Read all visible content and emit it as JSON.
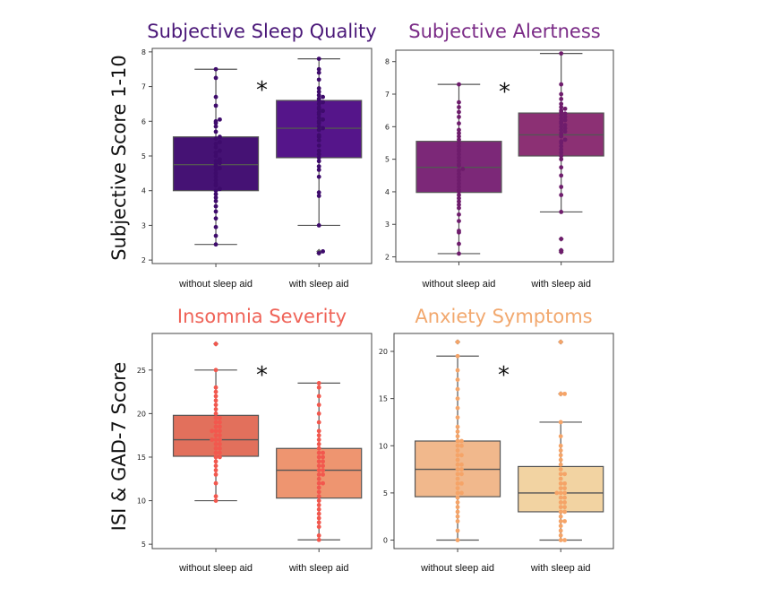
{
  "ylabels": {
    "top": "Subjective Score 1-10",
    "bottom": "ISI & GAD-7 Score"
  },
  "chart_data": [
    {
      "type": "box",
      "title": "Subjective Sleep Quality",
      "title_color": "#4a1778",
      "categories": [
        "without sleep aid",
        "with sleep aid"
      ],
      "ylim": [
        1.9,
        8.1
      ],
      "yticks": [
        2,
        3,
        4,
        5,
        6,
        7,
        8
      ],
      "significance": "*",
      "box_colors": [
        "#451274",
        "#55158a"
      ],
      "dot_color": "#3e0b6c",
      "boxes": [
        {
          "whislo": 2.45,
          "q1": 4.0,
          "med": 4.75,
          "q3": 5.55,
          "whishi": 7.5,
          "fliers": []
        },
        {
          "whislo": 3.0,
          "q1": 4.95,
          "med": 5.8,
          "q3": 6.6,
          "whishi": 7.8,
          "fliers": [
            2.2,
            2.25
          ]
        }
      ],
      "points": [
        [
          2.45,
          2.7,
          2.95,
          3.2,
          3.4,
          3.55,
          3.7,
          3.8,
          3.9,
          4.0,
          4.05,
          4.15,
          4.2,
          4.3,
          4.4,
          4.5,
          4.6,
          4.65,
          4.7,
          4.75,
          4.8,
          4.85,
          4.9,
          5.0,
          5.1,
          5.15,
          5.25,
          5.35,
          5.4,
          5.5,
          5.55,
          5.7,
          5.85,
          5.95,
          6.0,
          6.05,
          6.45,
          6.7,
          7.25,
          7.5
        ],
        [
          2.2,
          2.25,
          3.0,
          3.85,
          3.95,
          4.4,
          4.6,
          4.7,
          4.85,
          4.95,
          5.05,
          5.15,
          5.3,
          5.45,
          5.55,
          5.6,
          5.75,
          5.8,
          5.85,
          5.95,
          6.0,
          6.05,
          6.1,
          6.2,
          6.25,
          6.3,
          6.35,
          6.4,
          6.5,
          6.55,
          6.6,
          6.65,
          6.7,
          6.75,
          6.85,
          6.95,
          7.2,
          7.4,
          7.5,
          7.8
        ]
      ]
    },
    {
      "type": "box",
      "title": "Subjective Alertness",
      "title_color": "#7a2a86",
      "categories": [
        "without sleep aid",
        "with sleep aid"
      ],
      "ylim": [
        1.85,
        8.35
      ],
      "yticks": [
        2,
        3,
        4,
        5,
        6,
        7,
        8
      ],
      "significance": "*",
      "box_colors": [
        "#7c2878",
        "#8c3074"
      ],
      "dot_color": "#6e1c6c",
      "boxes": [
        {
          "whislo": 2.1,
          "q1": 3.98,
          "med": 4.75,
          "q3": 5.55,
          "whishi": 7.3,
          "fliers": []
        },
        {
          "whislo": 3.38,
          "q1": 5.1,
          "med": 5.75,
          "q3": 6.42,
          "whishi": 8.25,
          "fliers": [
            2.15,
            2.2,
            2.55
          ]
        }
      ],
      "points": [
        [
          2.1,
          2.4,
          2.75,
          2.8,
          3.1,
          3.3,
          3.5,
          3.6,
          3.7,
          3.8,
          3.9,
          4.0,
          4.05,
          4.15,
          4.25,
          4.35,
          4.45,
          4.55,
          4.65,
          4.7,
          4.8,
          4.85,
          4.95,
          5.05,
          5.15,
          5.25,
          5.3,
          5.4,
          5.5,
          5.6,
          5.7,
          5.8,
          5.9,
          6.1,
          6.3,
          6.45,
          6.6,
          6.75,
          7.3
        ],
        [
          2.15,
          2.2,
          2.55,
          3.38,
          3.9,
          4.15,
          4.5,
          4.75,
          5.0,
          5.1,
          5.2,
          5.3,
          5.4,
          5.5,
          5.55,
          5.6,
          5.7,
          5.75,
          5.8,
          5.85,
          5.9,
          5.95,
          6.0,
          6.05,
          6.1,
          6.15,
          6.2,
          6.25,
          6.3,
          6.35,
          6.4,
          6.45,
          6.5,
          6.55,
          6.6,
          6.7,
          6.85,
          7.0,
          7.3,
          8.25
        ]
      ]
    },
    {
      "type": "box",
      "title": "Insomnia Severity",
      "title_color": "#ef6358",
      "categories": [
        "without sleep aid",
        "with sleep aid"
      ],
      "ylim": [
        4.5,
        29.2
      ],
      "yticks": [
        5,
        10,
        15,
        20,
        25
      ],
      "significance": "*",
      "box_colors": [
        "#e2705c",
        "#ee9570"
      ],
      "dot_color": "#f2584e",
      "boxes": [
        {
          "whislo": 10.0,
          "q1": 15.1,
          "med": 17.0,
          "q3": 19.8,
          "whishi": 25.0,
          "fliers": [
            28.0
          ]
        },
        {
          "whislo": 5.5,
          "q1": 10.3,
          "med": 13.5,
          "q3": 16.0,
          "whishi": 23.5,
          "fliers": []
        }
      ],
      "points": [
        [
          10.0,
          10.5,
          12.0,
          13.0,
          13.5,
          14.0,
          14.5,
          15.0,
          15.0,
          15.5,
          15.5,
          16.0,
          16.0,
          16.5,
          16.5,
          17.0,
          17.0,
          17.0,
          17.5,
          17.5,
          18.0,
          18.0,
          18.0,
          18.5,
          18.5,
          19.0,
          19.0,
          19.5,
          19.5,
          20.0,
          20.5,
          21.0,
          21.5,
          22.0,
          22.5,
          23.0,
          25.0,
          28.0
        ],
        [
          5.5,
          6.0,
          7.0,
          7.5,
          8.0,
          8.5,
          9.0,
          9.5,
          10.0,
          10.5,
          11.0,
          11.5,
          12.0,
          12.0,
          12.5,
          13.0,
          13.0,
          13.5,
          13.5,
          14.0,
          14.0,
          14.5,
          14.5,
          15.0,
          15.0,
          15.5,
          15.5,
          16.0,
          16.5,
          17.0,
          17.5,
          18.0,
          19.0,
          20.0,
          21.0,
          22.0,
          23.0,
          23.5
        ]
      ]
    },
    {
      "type": "box",
      "title": "Anxiety Symptoms",
      "title_color": "#f2a86e",
      "categories": [
        "without sleep aid",
        "with sleep aid"
      ],
      "ylim": [
        -0.9,
        21.9
      ],
      "yticks": [
        0,
        5,
        10,
        15,
        20
      ],
      "significance": "*",
      "box_colors": [
        "#f1b88c",
        "#f2d3a2"
      ],
      "dot_color": "#f5a468",
      "boxes": [
        {
          "whislo": 0.0,
          "q1": 4.6,
          "med": 7.5,
          "q3": 10.5,
          "whishi": 19.5,
          "fliers": [
            21.0
          ]
        },
        {
          "whislo": 0.0,
          "q1": 3.0,
          "med": 5.0,
          "q3": 7.8,
          "whishi": 12.5,
          "fliers": [
            15.5,
            21.0
          ]
        }
      ],
      "points": [
        [
          0.0,
          1.0,
          2.0,
          2.5,
          3.0,
          3.5,
          4.0,
          4.5,
          5.0,
          5.0,
          5.5,
          6.0,
          6.0,
          6.5,
          7.0,
          7.0,
          7.5,
          7.5,
          8.0,
          8.0,
          8.5,
          9.0,
          9.0,
          9.5,
          10.0,
          10.0,
          10.5,
          10.5,
          11.0,
          11.5,
          12.0,
          13.0,
          14.0,
          15.0,
          16.0,
          17.0,
          18.0,
          19.5,
          21.0
        ],
        [
          0.0,
          0.0,
          0.5,
          1.0,
          1.5,
          2.0,
          2.0,
          2.5,
          3.0,
          3.0,
          3.5,
          3.5,
          4.0,
          4.0,
          4.5,
          4.5,
          5.0,
          5.0,
          5.0,
          5.5,
          5.5,
          6.0,
          6.0,
          6.5,
          7.0,
          7.0,
          7.5,
          8.0,
          8.5,
          9.0,
          9.5,
          10.0,
          11.0,
          12.5,
          15.5,
          15.5,
          21.0
        ]
      ]
    }
  ]
}
